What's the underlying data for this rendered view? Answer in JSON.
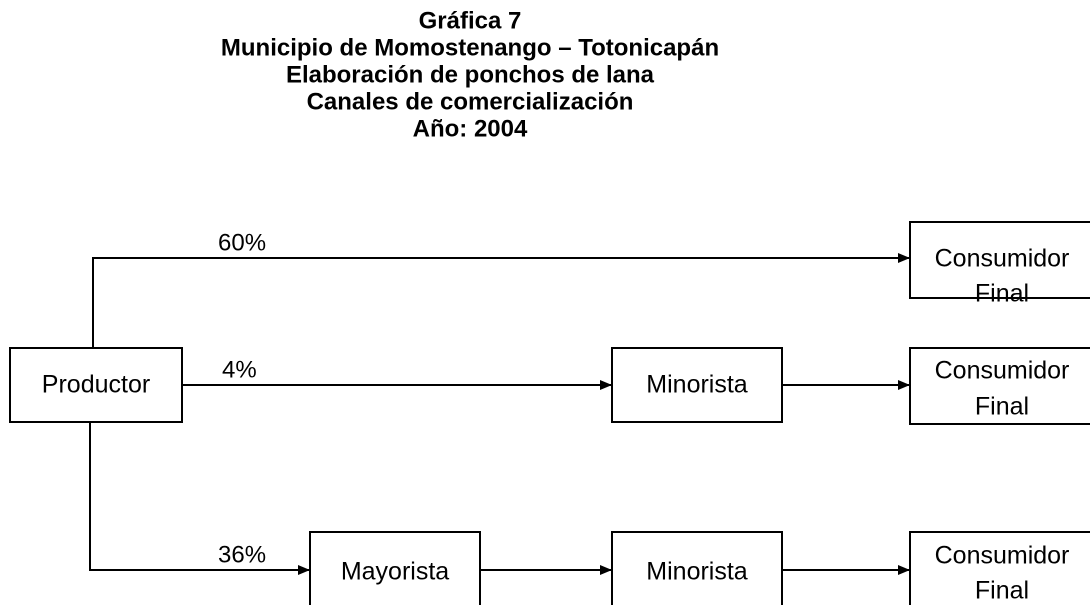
{
  "title": {
    "lines": [
      "Gráfica 7",
      "Municipio de Momostenango – Totonicapán",
      "Elaboración de ponchos de lana",
      "Canales de comercialización",
      "Año: 2004"
    ]
  },
  "nodes": [
    {
      "label": "Productor"
    },
    {
      "label": [
        "Consumidor",
        "Final"
      ]
    },
    {
      "label": "Minorista"
    },
    {
      "label": [
        "Consumidor",
        "Final"
      ]
    },
    {
      "label": "Mayorista"
    },
    {
      "label": "Minorista"
    },
    {
      "label": [
        "Consumidor",
        "Final"
      ]
    }
  ],
  "edges": [
    {
      "label": "60%"
    },
    {
      "label": "4%"
    },
    {
      "label": "36%"
    }
  ]
}
